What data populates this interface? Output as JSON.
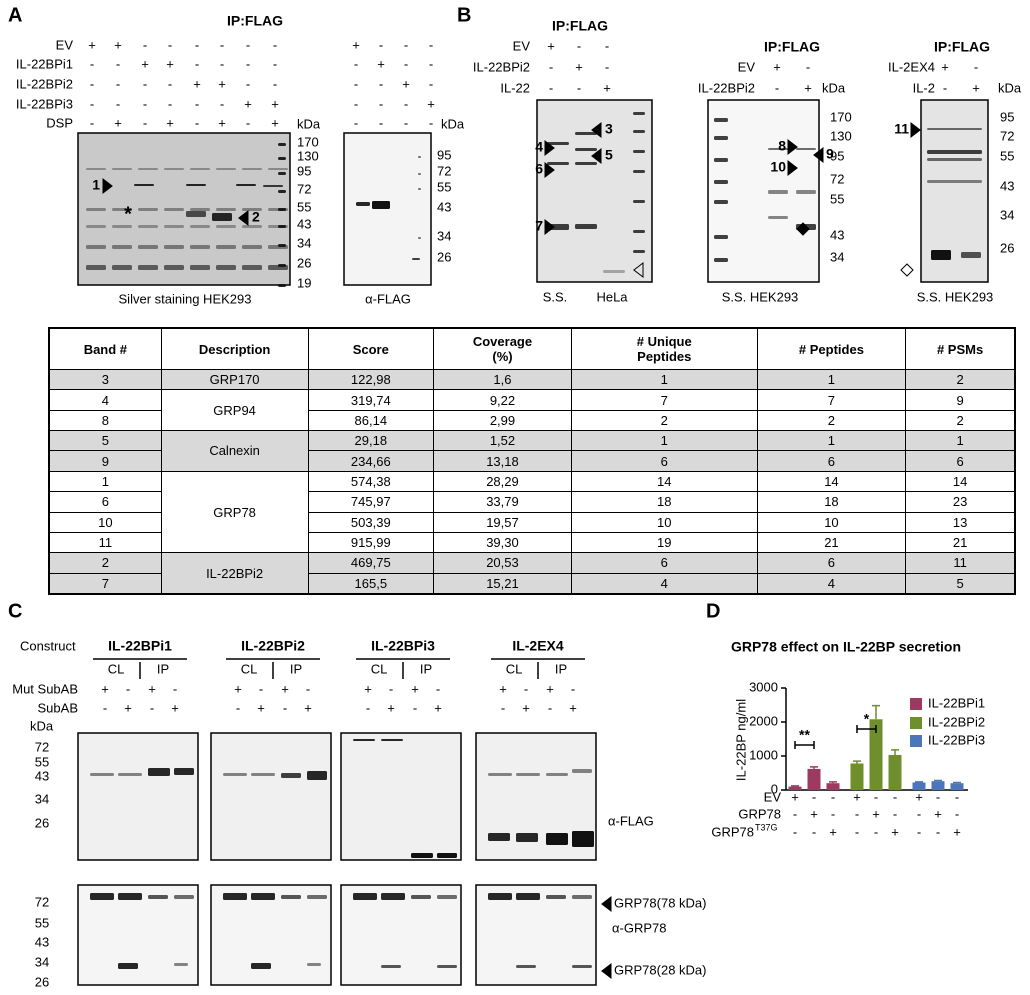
{
  "panel_a": {
    "label": "A",
    "title": "IP:FLAG",
    "rows": [
      {
        "label": "EV",
        "left": [
          "+",
          "+",
          "-",
          "-",
          "-",
          "-",
          "-",
          "-"
        ],
        "right": [
          "+",
          "-",
          "-",
          "-"
        ]
      },
      {
        "label": "IL-22BPi1",
        "left": [
          "-",
          "-",
          "+",
          "+",
          "-",
          "-",
          "-",
          "-"
        ],
        "right": [
          "-",
          "+",
          "-",
          "-"
        ]
      },
      {
        "label": "IL-22BPi2",
        "left": [
          "-",
          "-",
          "-",
          "-",
          "+",
          "+",
          "-",
          "-"
        ],
        "right": [
          "-",
          "-",
          "+",
          "-"
        ]
      },
      {
        "label": "IL-22BPi3",
        "left": [
          "-",
          "-",
          "-",
          "-",
          "-",
          "-",
          "+",
          "+"
        ],
        "right": [
          "-",
          "-",
          "-",
          "+"
        ]
      },
      {
        "label": "DSP",
        "left": [
          "-",
          "+",
          "-",
          "+",
          "-",
          "+",
          "-",
          "+"
        ],
        "right": [
          "-",
          "-",
          "-",
          "-"
        ]
      }
    ],
    "kda_left": "kDa",
    "kda_right": "kDa",
    "markers_left": [
      170,
      130,
      95,
      72,
      55,
      43,
      34,
      26,
      19
    ],
    "markers_right": [
      95,
      72,
      55,
      43,
      34,
      26
    ],
    "bands": [
      "1",
      "*",
      "2"
    ],
    "caption_left": "Silver staining HEK293",
    "caption_right": "α-FLAG"
  },
  "panel_b": {
    "label": "B",
    "blots": [
      {
        "title": "IP:FLAG",
        "rows": [
          {
            "label": "EV",
            "marks": [
              "+",
              "-",
              "-"
            ]
          },
          {
            "label": "IL-22BPi2",
            "marks": [
              "-",
              "+",
              "-"
            ]
          },
          {
            "label": "IL-22",
            "marks": [
              "-",
              "-",
              "+"
            ]
          }
        ],
        "bands": [
          "3",
          "4",
          "5",
          "6",
          "7"
        ],
        "captions": [
          "S.S.",
          "HeLa"
        ]
      },
      {
        "title": "IP:FLAG",
        "rows": [
          {
            "label": "EV",
            "marks": [
              "+",
              "-"
            ]
          },
          {
            "label": "IL-22BPi2",
            "marks": [
              "-",
              "+"
            ]
          }
        ],
        "kda": "kDa",
        "markers": [
          170,
          130,
          95,
          72,
          55,
          43,
          34
        ],
        "bands": [
          "8",
          "9",
          "10"
        ],
        "captions": [
          "S.S.  HEK293"
        ]
      },
      {
        "title": "IP:FLAG",
        "rows": [
          {
            "label": "IL-2EX4",
            "marks": [
              "+",
              "-"
            ]
          },
          {
            "label": "IL-2",
            "marks": [
              "-",
              "+"
            ]
          }
        ],
        "kda": "kDa",
        "markers": [
          95,
          72,
          55,
          43,
          34,
          26
        ],
        "bands": [
          "11"
        ],
        "captions": [
          "S.S. HEK293"
        ]
      }
    ]
  },
  "table": {
    "header": [
      "Band #",
      "Description",
      "Score",
      "Coverage (%)",
      "# Unique Peptides",
      "# Peptides",
      "# PSMs"
    ],
    "groups": [
      {
        "description": "GRP170",
        "rows": [
          [
            "3",
            "122,98",
            "1,6",
            "1",
            "1",
            "2"
          ]
        ]
      },
      {
        "description": "GRP94",
        "rows": [
          [
            "4",
            "319,74",
            "9,22",
            "7",
            "7",
            "9"
          ],
          [
            "8",
            "86,14",
            "2,99",
            "2",
            "2",
            "2"
          ]
        ]
      },
      {
        "description": "Calnexin",
        "rows": [
          [
            "5",
            "29,18",
            "1,52",
            "1",
            "1",
            "1"
          ],
          [
            "9",
            "234,66",
            "13,18",
            "6",
            "6",
            "6"
          ]
        ]
      },
      {
        "description": "GRP78",
        "rows": [
          [
            "1",
            "574,38",
            "28,29",
            "14",
            "14",
            "14"
          ],
          [
            "6",
            "745,97",
            "33,79",
            "18",
            "18",
            "23"
          ],
          [
            "10",
            "503,39",
            "19,57",
            "10",
            "10",
            "13"
          ],
          [
            "11",
            "915,99",
            "39,30",
            "19",
            "21",
            "21"
          ]
        ]
      },
      {
        "description": "IL-22BPi2",
        "rows": [
          [
            "2",
            "469,75",
            "20,53",
            "6",
            "6",
            "11"
          ],
          [
            "7",
            "165,5",
            "15,21",
            "4",
            "4",
            "5"
          ]
        ]
      }
    ]
  },
  "panel_c": {
    "label": "C",
    "construct_label": "Construct",
    "constructs": [
      {
        "name": "IL-22BPi1",
        "cl": "CL",
        "ip": "IP",
        "marks": [
          [
            "+",
            "-",
            "+",
            "-"
          ],
          [
            "-",
            "+",
            "-",
            "+"
          ]
        ]
      },
      {
        "name": "IL-22BPi2",
        "cl": "CL",
        "ip": "IP",
        "marks": [
          [
            "+",
            "-",
            "+",
            "-"
          ],
          [
            "-",
            "+",
            "-",
            "+"
          ]
        ]
      },
      {
        "name": "IL-22BPi3",
        "cl": "CL",
        "ip": "IP",
        "marks": [
          [
            "+",
            "-",
            "+",
            "-"
          ],
          [
            "-",
            "+",
            "-",
            "+"
          ]
        ]
      },
      {
        "name": "IL-2EX4",
        "cl": "CL",
        "ip": "IP",
        "marks": [
          [
            "+",
            "-",
            "+",
            "-"
          ],
          [
            "-",
            "+",
            "-",
            "+"
          ]
        ]
      }
    ],
    "row_labels": [
      "Mut SubAB",
      "SubAB"
    ],
    "kda": "kDa",
    "markers_top": [
      72,
      55,
      43,
      34,
      26
    ],
    "markers_bottom": [
      72,
      55,
      43,
      34,
      26
    ],
    "antibody_top": "α-FLAG",
    "band_top": "GRP78(78 kDa)",
    "antibody_bottom": "α-GRP78",
    "band_bottom": "GRP78(28 kDa)"
  },
  "chart_data": {
    "type": "bar",
    "panel_label": "D",
    "title": "GRP78 effect on IL-22BP secretion",
    "y_label": "IL-22BP ng/ml",
    "ylim": [
      0,
      3000
    ],
    "yticks": [
      0,
      1000,
      2000,
      3000
    ],
    "legend": "upper right",
    "series": [
      {
        "name": "IL-22BPi1",
        "color": "#9c3a62",
        "values": [
          100,
          620,
          200
        ],
        "errors": [
          20,
          60,
          40
        ]
      },
      {
        "name": "IL-22BPi2",
        "color": "#6f8f2c",
        "values": [
          780,
          2080,
          1030
        ],
        "errors": [
          70,
          400,
          150
        ]
      },
      {
        "name": "IL-22BPi3",
        "color": "#4d76b8",
        "values": [
          220,
          260,
          200
        ],
        "errors": [
          20,
          20,
          20
        ]
      }
    ],
    "annotations": [
      "**",
      "*"
    ],
    "conditions": [
      {
        "label": "EV",
        "marks": [
          "+",
          "-",
          "-",
          "+",
          "-",
          "-",
          "+",
          "-",
          "-"
        ]
      },
      {
        "label": "GRP78",
        "marks": [
          "-",
          "+",
          "-",
          "-",
          "+",
          "-",
          "-",
          "+",
          "-"
        ]
      },
      {
        "label": "GRP78",
        "superscript": "T37G",
        "marks": [
          "-",
          "-",
          "+",
          "-",
          "-",
          "+",
          "-",
          "-",
          "+"
        ]
      }
    ]
  }
}
